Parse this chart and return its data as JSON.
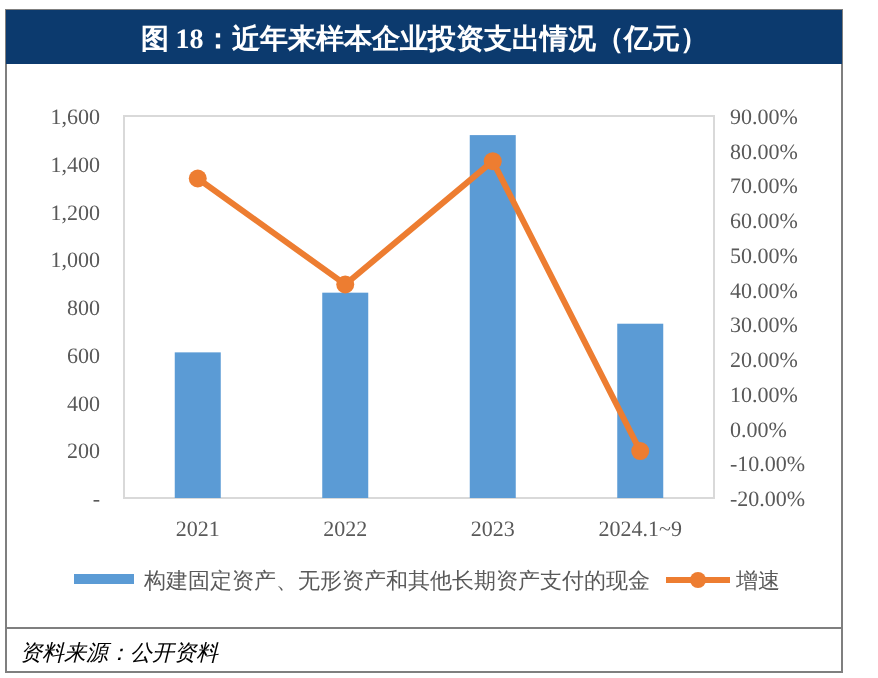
{
  "chart_data": {
    "type": "bar",
    "title": "图 18：近年来样本企业投资支出情况（亿元）",
    "categories": [
      "2021",
      "2022",
      "2023",
      "2024.1~9"
    ],
    "series": [
      {
        "name": "构建固定资产、无形资产和其他长期资产支付的现金",
        "color": "#5b9bd5",
        "values": [
          610,
          860,
          1520,
          730
        ]
      },
      {
        "name": "增速",
        "type": "line",
        "axis": "y2",
        "color": "#ed7d31",
        "marker": "circle",
        "values": [
          72,
          41.5,
          77,
          -6.5
        ]
      }
    ],
    "ylim": [
      0,
      1600
    ],
    "yticks": [
      {
        "value": 0,
        "label": "-"
      },
      200,
      400,
      600,
      800,
      {
        "value": 1000,
        "label": "1,000"
      },
      {
        "value": 1200,
        "label": "1,200"
      },
      {
        "value": 1400,
        "label": "1,400"
      },
      {
        "value": 1600,
        "label": "1,600"
      }
    ],
    "y2lim": [
      -20,
      90
    ],
    "y2ticks": [
      {
        "value": -20,
        "label": "-20.00%"
      },
      {
        "value": -10,
        "label": "-10.00%"
      },
      {
        "value": 0,
        "label": "0.00%"
      },
      {
        "value": 10,
        "label": "10.00%"
      },
      {
        "value": 20,
        "label": "20.00%"
      },
      {
        "value": 30,
        "label": "30.00%"
      },
      {
        "value": 40,
        "label": "40.00%"
      },
      {
        "value": 50,
        "label": "50.00%"
      },
      {
        "value": 60,
        "label": "60.00%"
      },
      {
        "value": 70,
        "label": "70.00%"
      },
      {
        "value": 80,
        "label": "80.00%"
      },
      {
        "value": 90,
        "label": "90.00%"
      }
    ],
    "legend": "bottom",
    "annotations": [
      "资料来源：公开资料"
    ]
  }
}
